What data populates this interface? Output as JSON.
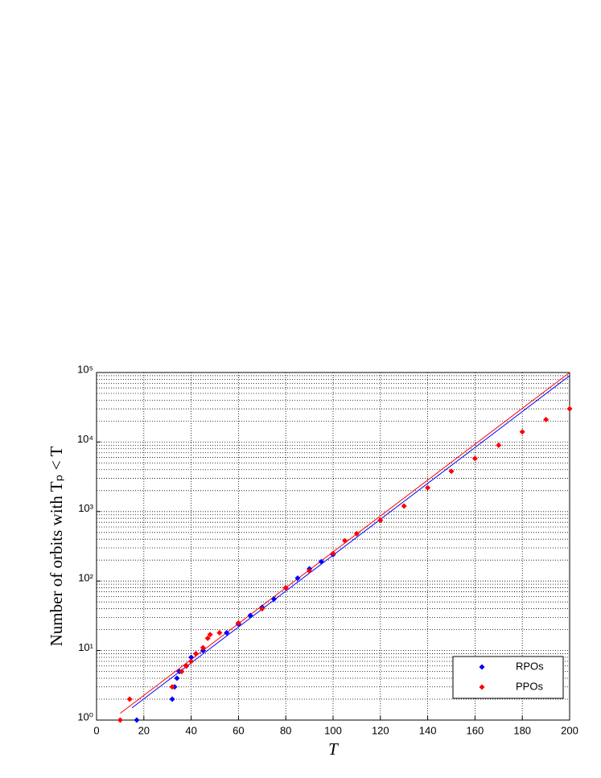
{
  "chart_data": {
    "type": "scatter",
    "x_label": "T",
    "y_label": "Number of orbits with Tₚ < T",
    "xlim": [
      0,
      200
    ],
    "xticks": [
      0,
      20,
      40,
      60,
      80,
      100,
      120,
      140,
      160,
      180,
      200
    ],
    "ylim": [
      1,
      100000
    ],
    "yticks": [
      {
        "value": 1,
        "label": "10⁰"
      },
      {
        "value": 10,
        "label": "10¹"
      },
      {
        "value": 100,
        "label": "10²"
      },
      {
        "value": 1000,
        "label": "10³"
      },
      {
        "value": 10000,
        "label": "10⁴"
      },
      {
        "value": 100000,
        "label": "10⁵"
      }
    ],
    "y_scale": "log",
    "grid": true,
    "legend_position": "lower right",
    "series": [
      {
        "name": "RPOs",
        "color": "#0000ff",
        "x": [
          17,
          32,
          33,
          34,
          35,
          38,
          40,
          45,
          55,
          60,
          65,
          70,
          75,
          80,
          85,
          90,
          95,
          100
        ],
        "values": [
          1,
          2,
          3,
          4,
          5,
          6,
          8,
          10,
          18,
          24,
          32,
          42,
          55,
          80,
          110,
          150,
          190,
          240
        ]
      },
      {
        "name": "PPOs",
        "color": "#ff0000",
        "x": [
          10,
          14,
          32,
          36,
          38,
          40,
          42,
          45,
          47,
          48,
          52,
          60,
          70,
          80,
          90,
          100,
          105,
          110,
          120,
          130,
          140,
          150,
          160,
          170,
          180,
          190,
          200
        ],
        "values": [
          1,
          2,
          3,
          5,
          6,
          7,
          9,
          11,
          15,
          17,
          18,
          25,
          40,
          80,
          140,
          250,
          380,
          480,
          750,
          1200,
          2200,
          3800,
          5800,
          9000,
          14000,
          21000,
          30000
        ]
      }
    ],
    "fit_lines": [
      {
        "color": "#0000ff",
        "x": [
          15,
          200
        ],
        "values": [
          1.5,
          90000
        ]
      },
      {
        "color": "#ff0000",
        "x": [
          10,
          200
        ],
        "values": [
          1.25,
          100000
        ]
      }
    ]
  }
}
